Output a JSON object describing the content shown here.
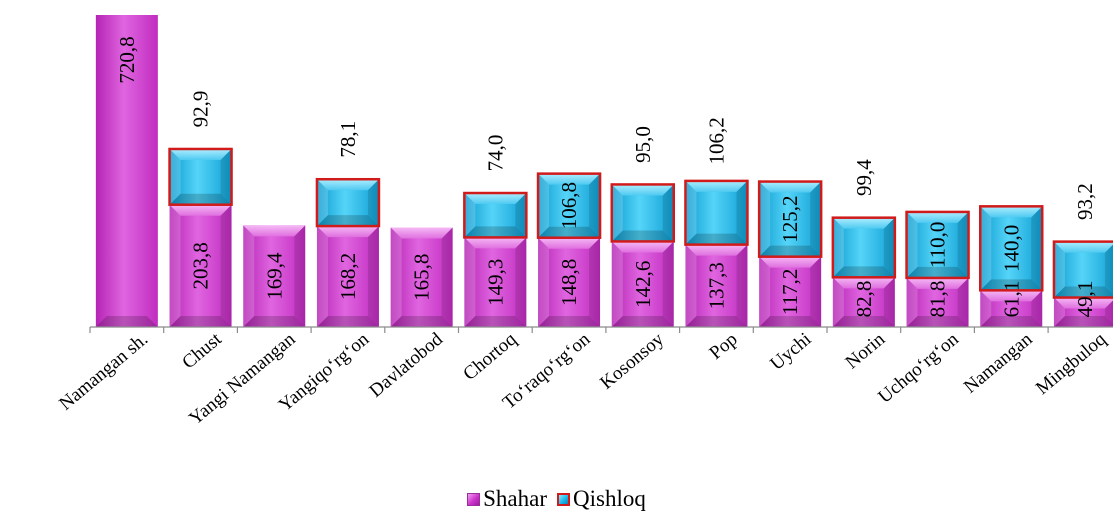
{
  "chart_data": {
    "type": "bar",
    "stacked": true,
    "categories": [
      "Namangan sh.",
      "Chust",
      "Yangi Namangan",
      "Yangiqo‘rg‘on",
      "Davlatobod",
      "Chortoq",
      "To‘raqo‘rg‘on",
      "Kosonsoy",
      "Pop",
      "Uychi",
      "Norin",
      "Uchqo‘rg‘on",
      "Namangan",
      "Mingbuloq"
    ],
    "series": [
      {
        "name": "Shahar",
        "values": [
          720.8,
          203.8,
          169.4,
          168.2,
          165.8,
          149.3,
          148.8,
          142.6,
          137.3,
          117.2,
          82.8,
          81.8,
          61.1,
          49.1
        ],
        "labels": [
          "720,8",
          "203,8",
          "169,4",
          "168,2",
          "165,8",
          "149,3",
          "148,8",
          "142,6",
          "137,3",
          "117,2",
          "82,8",
          "81,8",
          "61,1",
          "49,1"
        ],
        "color": "#cc33cc"
      },
      {
        "name": "Qishloq",
        "values": [
          null,
          92.9,
          null,
          78.1,
          null,
          74.0,
          106.8,
          95.0,
          106.2,
          125.2,
          99.4,
          110.0,
          140.0,
          93.2
        ],
        "labels": [
          "",
          "92,9",
          "",
          "78,1",
          "",
          "74,0",
          "106,8",
          "95,0",
          "106,2",
          "125,2",
          "99,4",
          "110,0",
          "140,0",
          "93,2"
        ],
        "color": "#14b4e8",
        "border_color": "#d11a1a"
      }
    ],
    "legend_position": "bottom",
    "grid": false,
    "axis_break": true
  },
  "legend": {
    "shahar": "Shahar",
    "qishloq": "Qishloq"
  }
}
